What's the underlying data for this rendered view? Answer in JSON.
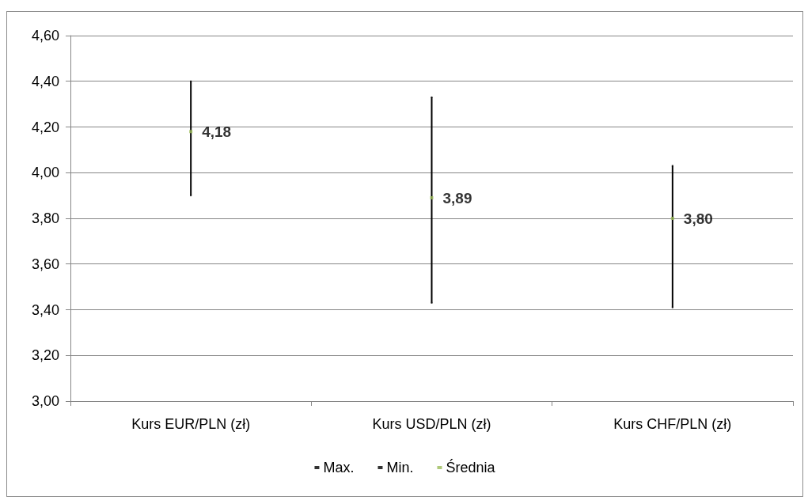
{
  "chart_data": {
    "type": "scatter",
    "categories": [
      "Kurs EUR/PLN (zł)",
      "Kurs USD/PLN (zł)",
      "Kurs CHF/PLN (zł)"
    ],
    "series": [
      {
        "name": "Max.",
        "color": "#000000",
        "marker": "square",
        "values": [
          4.4,
          4.33,
          4.03
        ]
      },
      {
        "name": "Min.",
        "color": "#000000",
        "marker": "square",
        "values": [
          3.9,
          3.43,
          3.41
        ]
      },
      {
        "name": "Średnia",
        "color": "#9bbb59",
        "marker": "square",
        "values": [
          4.18,
          3.89,
          3.8
        ],
        "value_labels": [
          "4,18",
          "3,89",
          "3,80"
        ]
      }
    ],
    "ylim": [
      3.0,
      4.6
    ],
    "yticks": [
      {
        "value": 3.0,
        "label": "3,00"
      },
      {
        "value": 3.2,
        "label": "3,20"
      },
      {
        "value": 3.4,
        "label": "3,40"
      },
      {
        "value": 3.6,
        "label": "3,60"
      },
      {
        "value": 3.8,
        "label": "3,80"
      },
      {
        "value": 4.0,
        "label": "4,00"
      },
      {
        "value": 4.2,
        "label": "4,20"
      },
      {
        "value": 4.4,
        "label": "4,40"
      },
      {
        "value": 4.6,
        "label": "4,60"
      }
    ],
    "grid": "y",
    "legend": "bottom"
  }
}
